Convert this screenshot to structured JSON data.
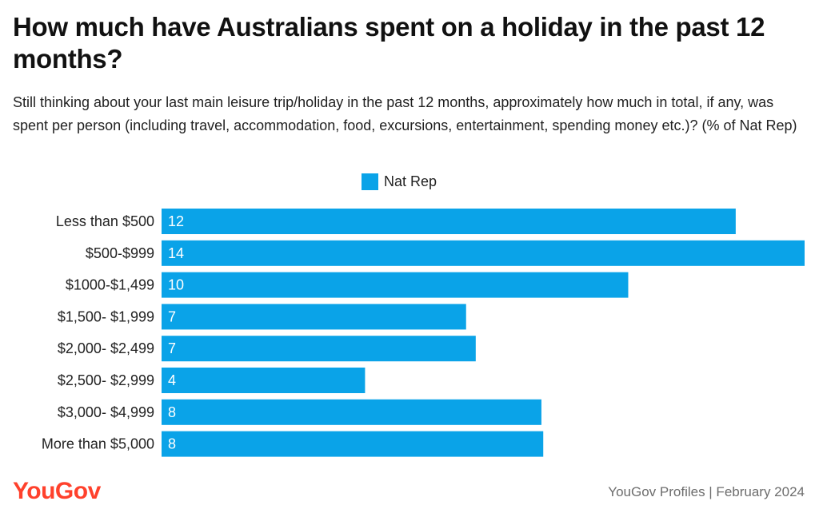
{
  "header": {
    "title": "How much have Australians spent on a holiday in the past 12 months?",
    "subtitle": "Still thinking about your last main leisure trip/holiday in the past 12 months, approximately how much in total, if any, was spent per person (including travel, accommodation, food, excursions, entertainment, spending money etc.)? (% of Nat Rep)"
  },
  "footer": {
    "brand": "YouGov",
    "source": "YouGov Profiles | February 2024"
  },
  "colors": {
    "bar": "#0aa3e8",
    "brand": "#ff412c"
  },
  "chart_data": {
    "type": "bar",
    "orientation": "horizontal",
    "title": "How much have Australians spent on a holiday in the past 12 months?",
    "legend_position": "top-center",
    "grid": false,
    "categories": [
      "Less than $500",
      "$500-$999",
      "$1000-$1,499",
      "$1,500- $1,999",
      "$2,000- $2,499",
      "$2,500- $2,999",
      "$3,000- $4,999",
      "More than $5,000"
    ],
    "series": [
      {
        "name": "Nat Rep",
        "values": [
          12,
          14,
          10,
          7,
          7,
          4,
          8,
          8
        ],
        "plotted_values": [
          12.5,
          14.0,
          10.16,
          6.63,
          6.84,
          4.43,
          8.27,
          8.31
        ]
      }
    ],
    "xlim": [
      0,
      14
    ]
  }
}
